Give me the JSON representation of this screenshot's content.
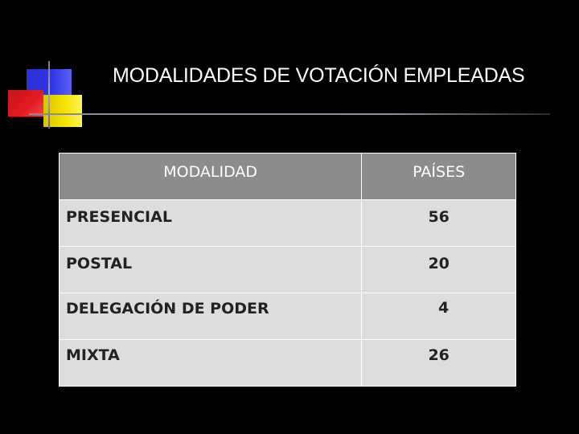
{
  "slide": {
    "title": "MODALIDADES DE VOTACIÓN EMPLEADAS"
  },
  "table": {
    "headers": [
      "MODALIDAD",
      "PAÍSES"
    ],
    "rows": [
      {
        "modalidad": "PRESENCIAL",
        "paises": "56"
      },
      {
        "modalidad": "POSTAL",
        "paises": "20"
      },
      {
        "modalidad": "DELEGACIÓN DE PODER",
        "paises": "4"
      },
      {
        "modalidad": "MIXTA",
        "paises": "26"
      }
    ]
  },
  "colors": {
    "background": "#000000",
    "header_fill": "#8c8c8c",
    "row_fill": "#dddddd",
    "accent_blue": "#3035e8",
    "accent_yellow": "#f4e200",
    "accent_red": "#e31a23"
  }
}
